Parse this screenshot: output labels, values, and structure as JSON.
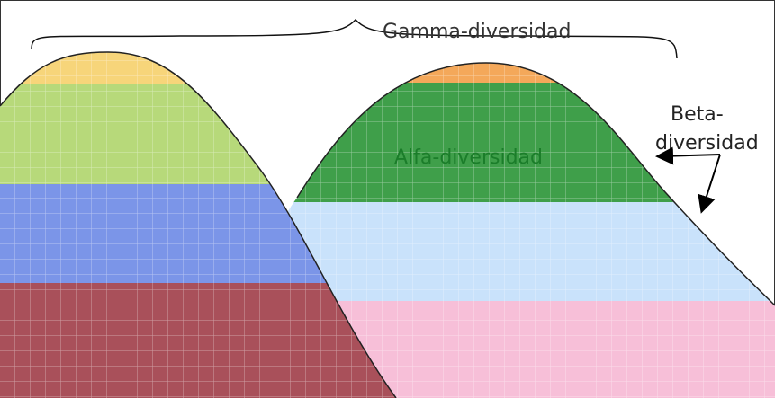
{
  "labels": {
    "gamma": "Gamma-diversidad",
    "alfa": "Alfa-diversidad",
    "beta": [
      "Beta-",
      "diversidad"
    ]
  }
}
